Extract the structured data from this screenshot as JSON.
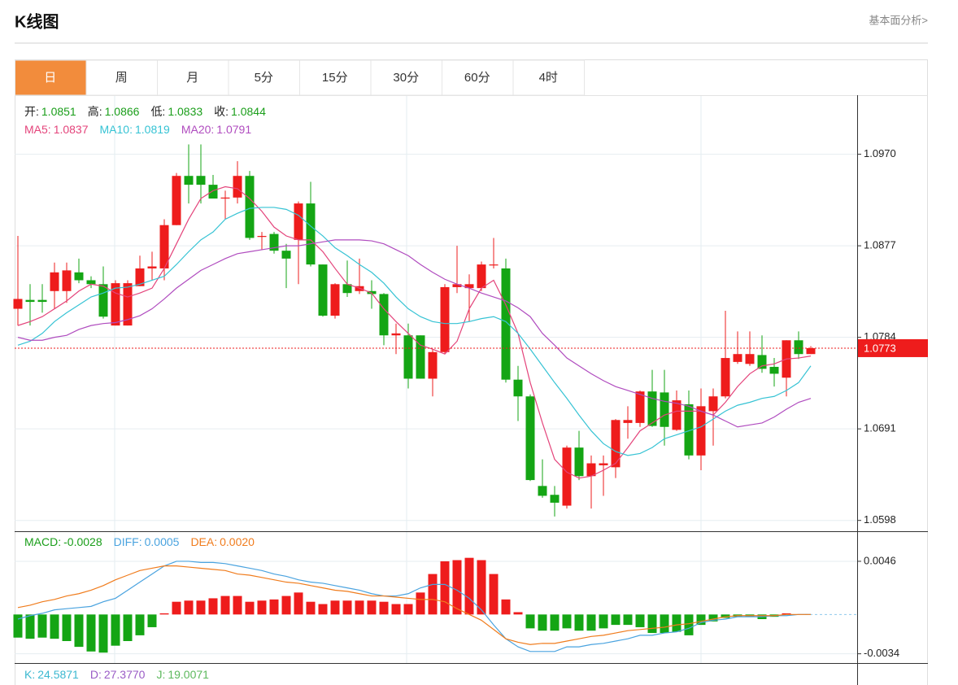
{
  "header": {
    "title": "K线图",
    "link": "基本面分析>"
  },
  "tabs": [
    "日",
    "周",
    "月",
    "5分",
    "15分",
    "30分",
    "60分",
    "4时"
  ],
  "active_tab": 0,
  "chart_data": [
    {
      "type": "candlestick",
      "up_color": "#ee1c1c",
      "down_color": "#14a514",
      "grid": true,
      "readouts": [
        {
          "label": "开:",
          "readout": "1.0851",
          "color": "#1a9e1a",
          "label_color": "#222222"
        },
        {
          "label": "高:",
          "readout": "1.0866",
          "color": "#1a9e1a",
          "label_color": "#222222"
        },
        {
          "label": "低:",
          "readout": "1.0833",
          "color": "#1a9e1a",
          "label_color": "#222222"
        },
        {
          "label": "收:",
          "readout": "1.0844",
          "color": "#1a9e1a",
          "label_color": "#222222"
        }
      ],
      "open": [
        1.0813,
        1.0822,
        1.0822,
        1.0831,
        1.0831,
        1.085,
        1.0842,
        1.0838,
        1.0796,
        1.0796,
        1.0836,
        1.0854,
        1.0854,
        1.0898,
        1.0948,
        1.0948,
        1.0939,
        1.0925,
        1.0926,
        1.0948,
        1.0886,
        1.0889,
        1.0872,
        1.0883,
        1.092,
        1.0858,
        1.0806,
        1.0838,
        1.0831,
        1.0831,
        1.0828,
        1.0786,
        1.0786,
        1.0786,
        1.0742,
        1.0769,
        1.0835,
        1.0834,
        1.0834,
        1.0857,
        1.0854,
        1.0741,
        1.0724,
        1.0633,
        1.0624,
        1.0613,
        1.0672,
        1.0643,
        1.0654,
        1.0652,
        1.0697,
        1.0697,
        1.0729,
        1.0728,
        1.069,
        1.0716,
        1.0664,
        1.0709,
        1.0724,
        1.0759,
        1.0757,
        1.0766,
        1.0754,
        1.0743,
        1.0781,
        1.0767
      ],
      "high": [
        1.0887,
        1.0838,
        1.0838,
        1.086,
        1.086,
        1.0864,
        1.0846,
        1.0856,
        1.0842,
        1.0842,
        1.0867,
        1.0871,
        1.0904,
        1.0951,
        1.098,
        1.098,
        1.0949,
        1.0933,
        1.0963,
        1.0953,
        1.0891,
        1.0891,
        1.0879,
        1.0922,
        1.0942,
        1.0858,
        1.0839,
        1.0862,
        1.0864,
        1.0842,
        1.0829,
        1.0798,
        1.0798,
        1.0786,
        1.0772,
        1.0838,
        1.0877,
        1.0848,
        1.0861,
        1.0885,
        1.0864,
        1.0755,
        1.0726,
        1.066,
        1.0633,
        1.0674,
        1.0689,
        1.0664,
        1.0664,
        1.0701,
        1.0714,
        1.073,
        1.0751,
        1.0751,
        1.073,
        1.073,
        1.0732,
        1.0732,
        1.0811,
        1.079,
        1.079,
        1.0786,
        1.0763,
        1.0781,
        1.079,
        1.0775
      ],
      "low": [
        1.0796,
        1.0796,
        1.0809,
        1.0813,
        1.0819,
        1.0839,
        1.0834,
        1.0803,
        1.0796,
        1.0796,
        1.0836,
        1.0842,
        1.0842,
        1.0898,
        1.092,
        1.092,
        1.0925,
        1.0904,
        1.092,
        1.0883,
        1.0873,
        1.0869,
        1.0834,
        1.0838,
        1.0856,
        1.0805,
        1.0803,
        1.0825,
        1.0828,
        1.0813,
        1.0776,
        1.0767,
        1.0732,
        1.0742,
        1.0724,
        1.0767,
        1.0829,
        1.08,
        1.0831,
        1.0854,
        1.0738,
        1.0699,
        1.0638,
        1.0621,
        1.0602,
        1.061,
        1.0639,
        1.061,
        1.0623,
        1.0641,
        1.0681,
        1.0693,
        1.0693,
        1.0674,
        1.0689,
        1.066,
        1.0649,
        1.0674,
        1.0722,
        1.0757,
        1.0755,
        1.0748,
        1.0734,
        1.0724,
        1.0762,
        1.0767
      ],
      "close": [
        1.0823,
        1.082,
        1.082,
        1.085,
        1.0852,
        1.0842,
        1.0838,
        1.0805,
        1.0839,
        1.0839,
        1.0854,
        1.0856,
        1.0898,
        1.0948,
        1.0939,
        1.0939,
        1.0925,
        1.0926,
        1.0948,
        1.0885,
        1.0887,
        1.0872,
        1.0864,
        1.092,
        1.0858,
        1.0806,
        1.0838,
        1.0829,
        1.0836,
        1.0828,
        1.0786,
        1.0788,
        1.0742,
        1.0742,
        1.0769,
        1.0835,
        1.0838,
        1.0838,
        1.0858,
        1.0858,
        1.0741,
        1.0724,
        1.0639,
        1.0623,
        1.0616,
        1.0672,
        1.0643,
        1.0656,
        1.0656,
        1.07,
        1.07,
        1.0729,
        1.0694,
        1.0693,
        1.072,
        1.0664,
        1.0714,
        1.0724,
        1.0763,
        1.0767,
        1.0767,
        1.0752,
        1.0747,
        1.0781,
        1.0767,
        1.0773
      ],
      "series": [
        {
          "label": "MA5:",
          "readout": "1.0837",
          "color": "#e4447b",
          "values": [
            1.0796,
            1.08,
            1.0805,
            1.0813,
            1.0821,
            1.0831,
            1.0838,
            1.0836,
            1.0829,
            1.0825,
            1.0829,
            1.0834,
            1.0854,
            1.0879,
            1.0904,
            1.0925,
            1.0933,
            1.0937,
            1.0935,
            1.0925,
            1.0912,
            1.0896,
            1.0887,
            1.0883,
            1.0883,
            1.0871,
            1.0854,
            1.0838,
            1.0834,
            1.0829,
            1.0813,
            1.08,
            1.0788,
            1.0776,
            1.0772,
            1.0767,
            1.078,
            1.0813,
            1.0834,
            1.0842,
            1.0817,
            1.0788,
            1.0738,
            1.0697,
            1.066,
            1.0647,
            1.0641,
            1.0643,
            1.0649,
            1.0656,
            1.0672,
            1.0689,
            1.0697,
            1.0705,
            1.0709,
            1.0709,
            1.0709,
            1.0705,
            1.0718,
            1.0734,
            1.0747,
            1.0755,
            1.0757,
            1.0762,
            1.0763,
            1.0765
          ]
        },
        {
          "label": "MA10:",
          "readout": "1.0819",
          "color": "#36c3d4",
          "values": [
            1.0776,
            1.078,
            1.0788,
            1.08,
            1.0809,
            1.0817,
            1.0825,
            1.0829,
            1.0834,
            1.0835,
            1.0838,
            1.0842,
            1.0846,
            1.0858,
            1.0871,
            1.0883,
            1.0891,
            1.0904,
            1.091,
            1.0915,
            1.0916,
            1.0916,
            1.0914,
            1.0908,
            1.0897,
            1.0887,
            1.0875,
            1.0867,
            1.0858,
            1.085,
            1.0839,
            1.0825,
            1.0813,
            1.0805,
            1.08,
            1.0798,
            1.0798,
            1.08,
            1.0803,
            1.0805,
            1.08,
            1.0788,
            1.0772,
            1.0755,
            1.0738,
            1.0722,
            1.0705,
            1.0689,
            1.0676,
            1.0668,
            1.0664,
            1.0666,
            1.0672,
            1.0681,
            1.0685,
            1.0689,
            1.0693,
            1.0701,
            1.0709,
            1.0715,
            1.0718,
            1.0722,
            1.0724,
            1.073,
            1.0738,
            1.0755
          ]
        },
        {
          "label": "MA20:",
          "readout": "1.0791",
          "color": "#b04cbf",
          "values": [
            1.0784,
            1.0781,
            1.0781,
            1.0784,
            1.0786,
            1.0792,
            1.0796,
            1.0798,
            1.0799,
            1.0802,
            1.0806,
            1.0813,
            1.0823,
            1.0834,
            1.0843,
            1.0852,
            1.0858,
            1.0864,
            1.0869,
            1.0871,
            1.0873,
            1.0875,
            1.0877,
            1.0877,
            1.0879,
            1.0881,
            1.0883,
            1.0883,
            1.0883,
            1.0882,
            1.0879,
            1.0873,
            1.0867,
            1.0858,
            1.085,
            1.0843,
            1.0838,
            1.0834,
            1.0829,
            1.0825,
            1.0821,
            1.0814,
            1.0805,
            1.0788,
            1.0776,
            1.0763,
            1.0755,
            1.0747,
            1.074,
            1.0734,
            1.073,
            1.0726,
            1.0722,
            1.0719,
            1.0717,
            1.0714,
            1.0709,
            1.0705,
            1.0699,
            1.0693,
            1.0695,
            1.0697,
            1.0703,
            1.0711,
            1.0718,
            1.0722
          ]
        }
      ],
      "ylim": [
        1.0587,
        1.103
      ],
      "yticks": [
        {
          "value": 1.097,
          "label": "1.0970"
        },
        1.0877,
        1.0784,
        1.0691,
        1.0598
      ],
      "last_price": 1.0773
    },
    {
      "type": "macd",
      "label": "MACD:",
      "readout": "-0.0028",
      "color": "#1a9e1a",
      "up_color": "#ee1c1c",
      "down_color": "#14a514",
      "values": [
        -0.002,
        -0.0021,
        -0.002,
        -0.0021,
        -0.0023,
        -0.0028,
        -0.0032,
        -0.0033,
        -0.0027,
        -0.0023,
        -0.0018,
        -0.0011,
        0.0001,
        0.0011,
        0.0012,
        0.0012,
        0.0014,
        0.0016,
        0.0016,
        0.0011,
        0.0012,
        0.0013,
        0.0016,
        0.0019,
        0.0011,
        0.0009,
        0.0012,
        0.0012,
        0.0012,
        0.0012,
        0.0011,
        0.0009,
        0.0009,
        0.0019,
        0.0035,
        0.0046,
        0.0047,
        0.0049,
        0.0047,
        0.0035,
        0.0013,
        0.0002,
        -0.0012,
        -0.0014,
        -0.0014,
        -0.0012,
        -0.0014,
        -0.0014,
        -0.0012,
        -0.0009,
        -0.0009,
        -0.0011,
        -0.0016,
        -0.0016,
        -0.0015,
        -0.0018,
        -0.0009,
        -0.0006,
        -0.0003,
        -0.0002,
        -0.0002,
        -0.0004,
        -0.0002,
        0.0001,
        0,
        0
      ],
      "series": [
        {
          "label": "DIFF:",
          "readout": "0.0005",
          "color": "#4aa3df",
          "values": [
            -0.0004,
            -0.0001,
            0.0001,
            0.0004,
            0.0005,
            0.0006,
            0.0007,
            0.0011,
            0.0014,
            0.0021,
            0.0028,
            0.0035,
            0.0042,
            0.0046,
            0.0046,
            0.0045,
            0.0045,
            0.0044,
            0.0042,
            0.004,
            0.0038,
            0.0035,
            0.0033,
            0.003,
            0.0028,
            0.0027,
            0.0025,
            0.0023,
            0.0021,
            0.0018,
            0.0016,
            0.0016,
            0.0018,
            0.0023,
            0.0026,
            0.0026,
            0.0021,
            0.0014,
            0.0004,
            -0.0009,
            -0.0021,
            -0.0028,
            -0.0032,
            -0.0032,
            -0.0032,
            -0.0028,
            -0.0028,
            -0.0026,
            -0.0025,
            -0.0023,
            -0.0021,
            -0.0018,
            -0.0018,
            -0.0016,
            -0.0015,
            -0.0012,
            -0.0007,
            -0.0005,
            -0.0004,
            -0.0002,
            -0.0002,
            -0.0002,
            -0.0001,
            -0.0001,
            0,
            0
          ]
        },
        {
          "label": "DEA:",
          "readout": "0.0020",
          "color": "#f07c1d",
          "values": [
            0.0006,
            0.0008,
            0.0011,
            0.0013,
            0.0016,
            0.0018,
            0.0021,
            0.0025,
            0.003,
            0.0034,
            0.0038,
            0.004,
            0.0042,
            0.0042,
            0.0041,
            0.004,
            0.0039,
            0.0038,
            0.0035,
            0.0034,
            0.0032,
            0.003,
            0.0028,
            0.0027,
            0.0025,
            0.0023,
            0.0021,
            0.002,
            0.0018,
            0.0016,
            0.0016,
            0.0015,
            0.0014,
            0.0013,
            0.0013,
            0.0011,
            0.0005,
            0,
            -0.0005,
            -0.0013,
            -0.0021,
            -0.0024,
            -0.0026,
            -0.0025,
            -0.0025,
            -0.0023,
            -0.0021,
            -0.0019,
            -0.0018,
            -0.0016,
            -0.0014,
            -0.0013,
            -0.0012,
            -0.0011,
            -0.0009,
            -0.0008,
            -0.0006,
            -0.0004,
            -0.0002,
            -0.0001,
            -0.0001,
            -0.0001,
            -0.0001,
            0,
            0,
            0
          ]
        }
      ],
      "ylim": [
        -0.0042,
        0.0072
      ],
      "yticks": [
        0.0046,
        -0.0034
      ]
    },
    {
      "type": "readout",
      "readouts": [
        {
          "label": "K:",
          "readout": "24.5871",
          "color": "#3bb8d0"
        },
        {
          "label": "D:",
          "readout": "27.3770",
          "color": "#9a5cc6"
        },
        {
          "label": "J:",
          "readout": "19.0071",
          "color": "#5cb85c"
        }
      ]
    }
  ]
}
